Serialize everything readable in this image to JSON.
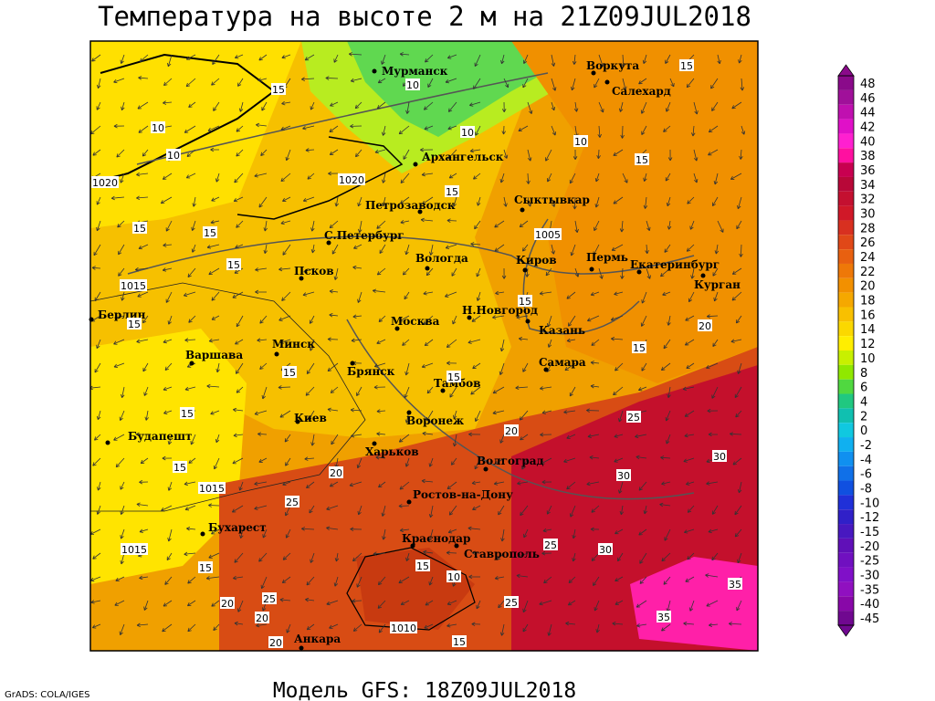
{
  "title": "Температура на высоте 2 м на 21Z09JUL2018",
  "footer": "Модель GFS: 18Z09JUL2018",
  "credit": "GrADS: COLA/IGES",
  "legend": {
    "labels": [
      "48",
      "46",
      "44",
      "42",
      "40",
      "38",
      "36",
      "34",
      "32",
      "30",
      "28",
      "26",
      "24",
      "22",
      "20",
      "18",
      "16",
      "14",
      "12",
      "10",
      "8",
      "6",
      "4",
      "2",
      "0",
      "-2",
      "-4",
      "-6",
      "-8",
      "-10",
      "-12",
      "-15",
      "-20",
      "-25",
      "-30",
      "-35",
      "-40",
      "-45"
    ],
    "colors": [
      "#8a0a8a",
      "#a0109a",
      "#c010b0",
      "#e010c8",
      "#ff20d0",
      "#ff10a0",
      "#c80050",
      "#b80838",
      "#c41030",
      "#d01828",
      "#d83020",
      "#e04818",
      "#e86010",
      "#ee7808",
      "#f29000",
      "#f5a800",
      "#f8c000",
      "#fbd800",
      "#ffee00",
      "#c8f000",
      "#90e800",
      "#50d840",
      "#20c880",
      "#10c0b0",
      "#10c8e0",
      "#10b0f0",
      "#1090f0",
      "#1070e8",
      "#1050e0",
      "#2030d8",
      "#3020c8",
      "#4818c0",
      "#6010b8",
      "#7010c0",
      "#8010c8",
      "#9010c0",
      "#8808a8",
      "#700890"
    ]
  },
  "cities": [
    "Мурманск",
    "Воркута",
    "Салехард",
    "Архангельск",
    "Сыктывкар",
    "Петрозаводск",
    "С.Петербург",
    "Вологда",
    "Киров",
    "Пермь",
    "Екатеринбург",
    "Курган",
    "Псков",
    "Н.Новгород",
    "Казань",
    "Москва",
    "Берлин",
    "Варшава",
    "Минск",
    "Брянск",
    "Самара",
    "Тамбов",
    "Киев",
    "Воронеж",
    "Харьков",
    "Волгоград",
    "Будапешт",
    "Ростов-на-Дону",
    "Бухарест",
    "Краснодар",
    "Ставрополь",
    "Анкара"
  ],
  "contour_labels": [
    "15",
    "10",
    "10",
    "10",
    "15",
    "10",
    "10",
    "1020",
    "1020",
    "15",
    "15",
    "15",
    "15",
    "1005",
    "15",
    "1015",
    "15",
    "15",
    "20",
    "15",
    "15",
    "15",
    "15",
    "25",
    "20",
    "30",
    "15",
    "20",
    "1015",
    "30",
    "25",
    "1015",
    "15",
    "25",
    "30",
    "15",
    "10",
    "25",
    "35",
    "35",
    "20",
    "25",
    "20",
    "1010",
    "15",
    "20"
  ]
}
